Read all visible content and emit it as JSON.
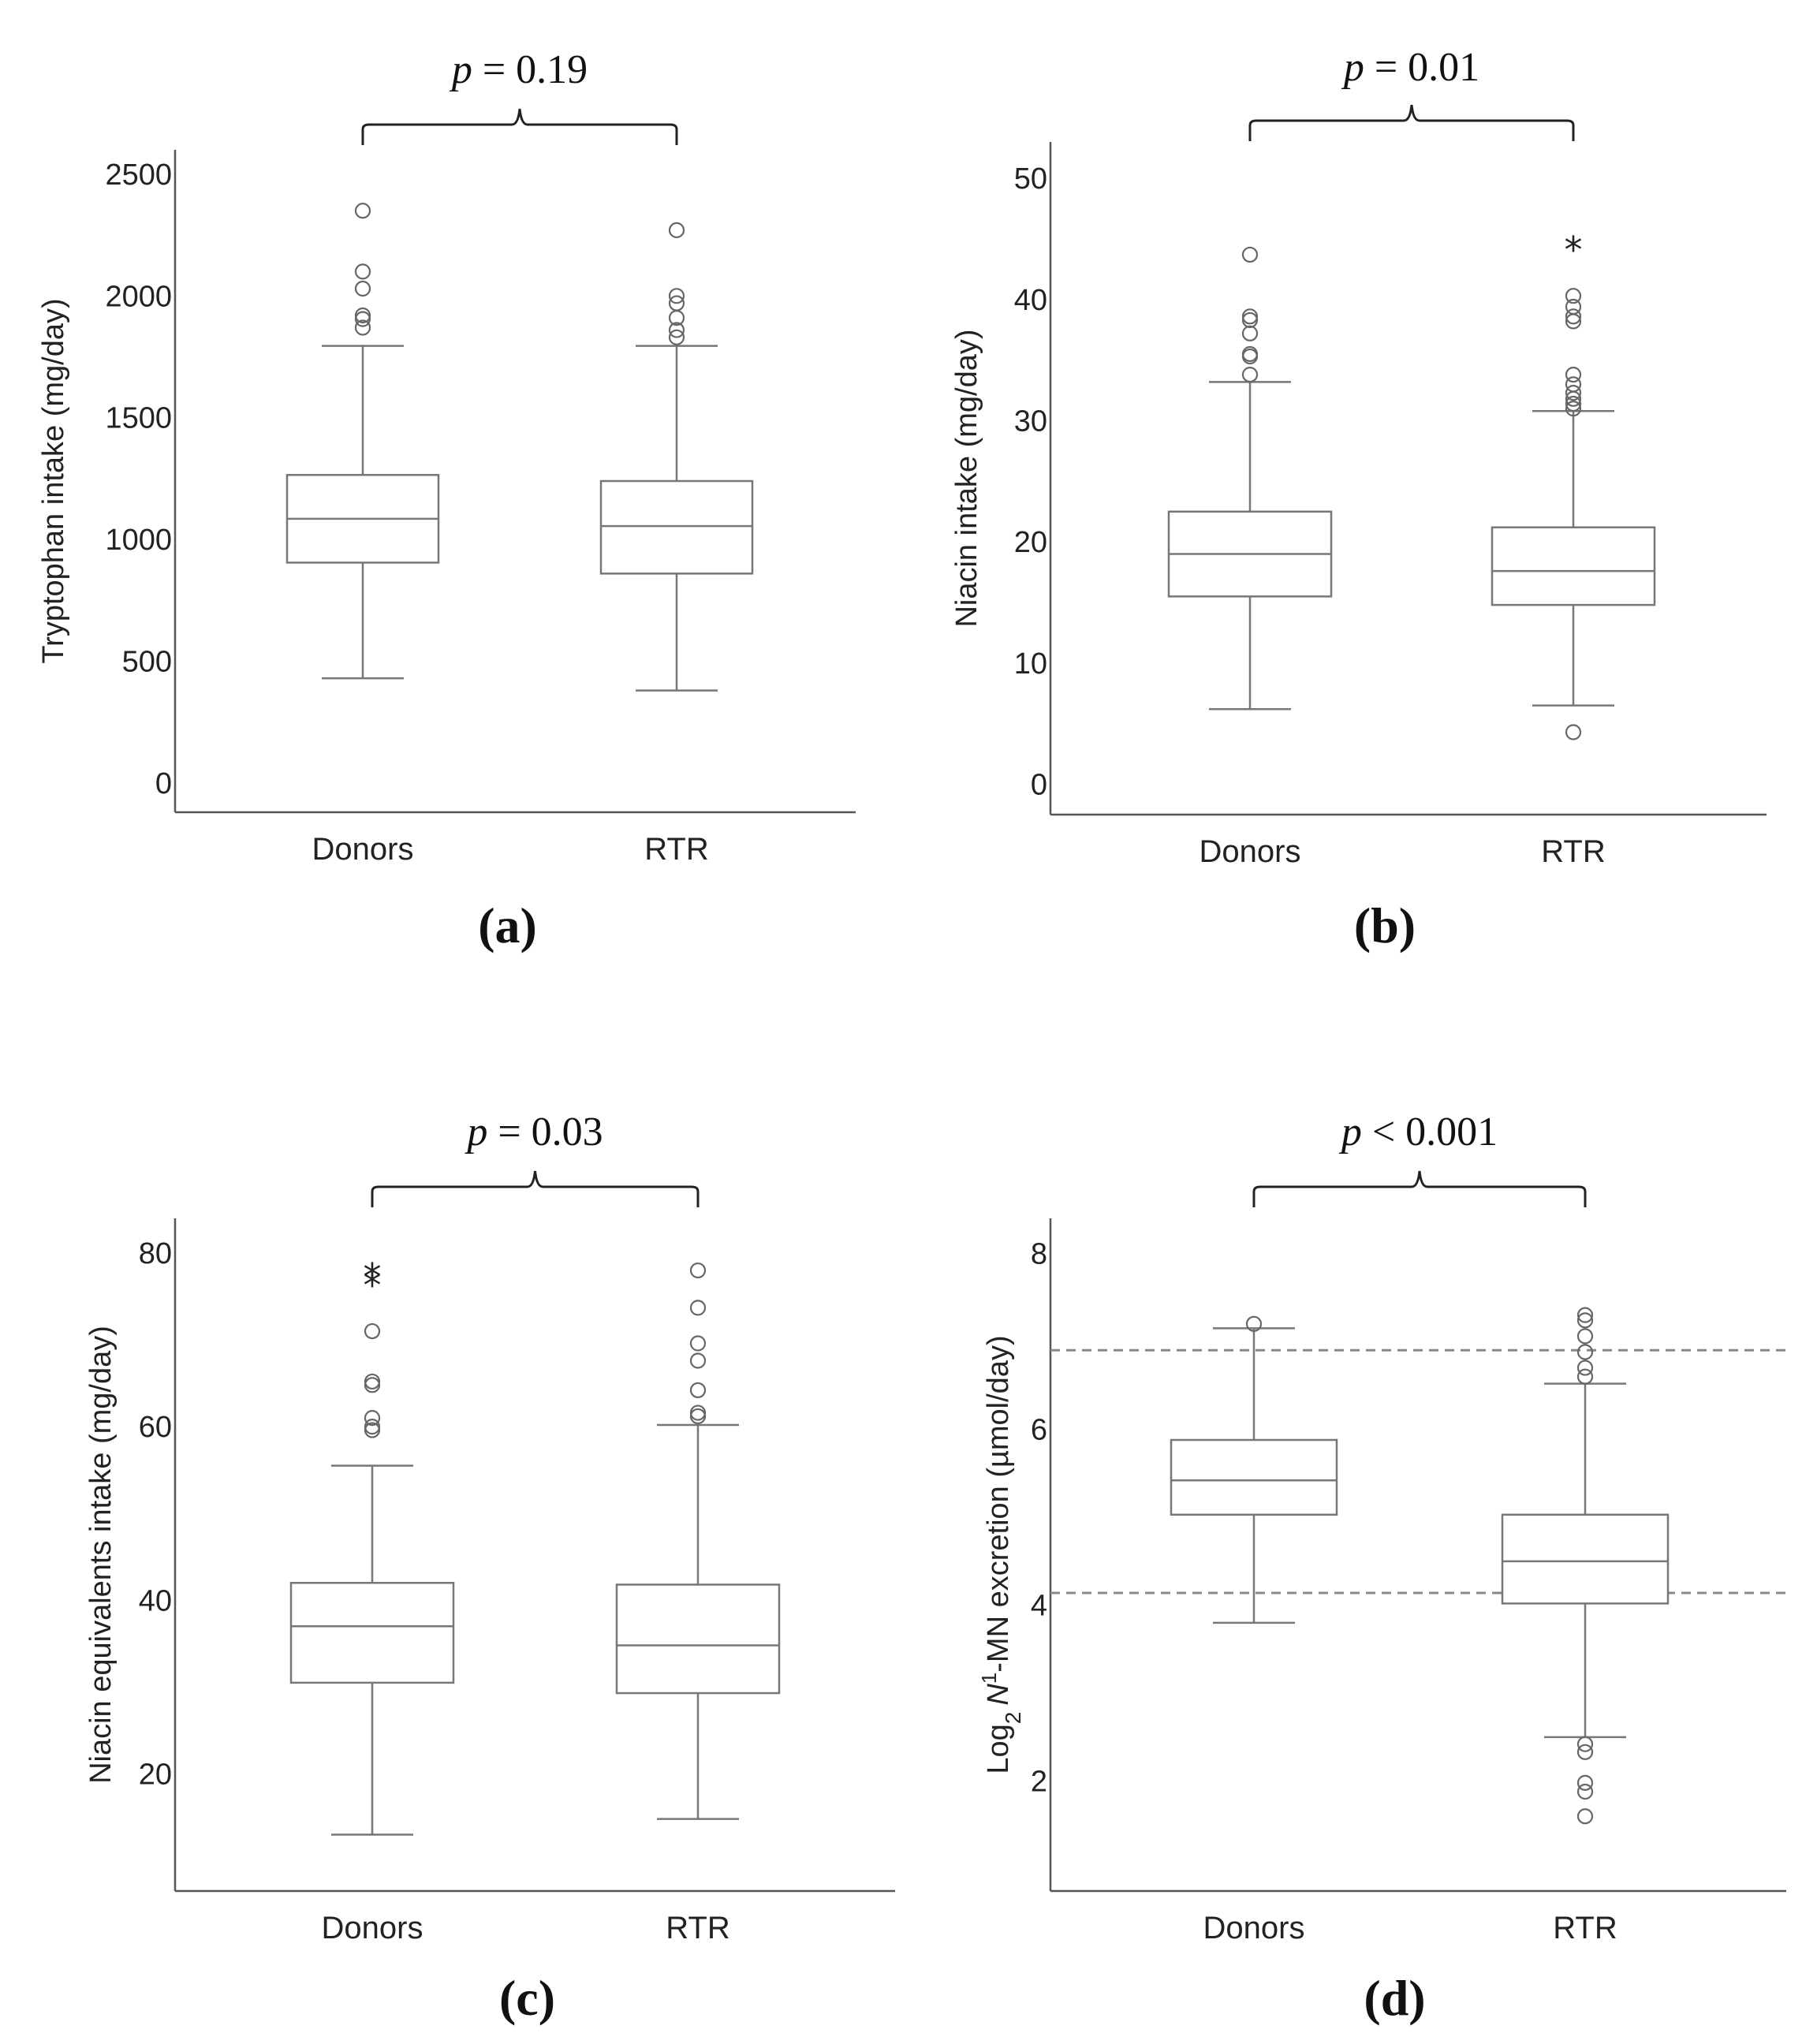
{
  "chart_data": [
    {
      "type": "box",
      "panel_label": "a",
      "ylabel": "Tryptophan intake (mg/day)",
      "p_prefix": "p",
      "p_text": " = 0.19",
      "ylim": [
        -120,
        2600
      ],
      "yticks": [
        0,
        500,
        1000,
        1500,
        2000,
        2500
      ],
      "ref_lines": [],
      "groups": [
        {
          "name": "Donors",
          "whisker_low": 430,
          "q1": 905,
          "median": 1085,
          "q3": 1265,
          "whisker_high": 1795,
          "outliers": [
            1870,
            1905,
            1920,
            2030,
            2100,
            2350
          ],
          "extremes": []
        },
        {
          "name": "RTR",
          "whisker_low": 380,
          "q1": 860,
          "median": 1055,
          "q3": 1240,
          "whisker_high": 1795,
          "outliers": [
            1830,
            1860,
            1910,
            1970,
            2000,
            2270
          ],
          "extremes": []
        }
      ]
    },
    {
      "type": "box",
      "panel_label": "b",
      "ylabel": "Niacin intake (mg/day)",
      "p_prefix": "p",
      "p_text": " = 0.01",
      "ylim": [
        -2.5,
        53
      ],
      "yticks": [
        0,
        10,
        20,
        30,
        40,
        50
      ],
      "ref_lines": [],
      "groups": [
        {
          "name": "Donors",
          "whisker_low": 6.2,
          "q1": 15.5,
          "median": 19.0,
          "q3": 22.5,
          "whisker_high": 33.2,
          "outliers": [
            33.8,
            35.3,
            35.5,
            37.2,
            38.3,
            38.6,
            43.7
          ],
          "extremes": []
        },
        {
          "name": "RTR",
          "whisker_low": 6.5,
          "q1": 14.8,
          "median": 17.6,
          "q3": 21.2,
          "whisker_high": 30.8,
          "outliers": [
            4.3,
            31.0,
            31.4,
            31.8,
            32.3,
            33.0,
            33.8,
            38.2,
            38.6,
            39.4,
            40.3
          ],
          "extremes": [
            44.6
          ]
        }
      ]
    },
    {
      "type": "box",
      "panel_label": "c",
      "ylabel": "Niacin equivalents intake (mg/day)",
      "p_prefix": "p",
      "p_text": " = 0.03",
      "ylim": [
        6.5,
        84
      ],
      "yticks": [
        20,
        40,
        60,
        80
      ],
      "ref_lines": [],
      "groups": [
        {
          "name": "Donors",
          "whisker_low": 13.0,
          "q1": 30.5,
          "median": 37.0,
          "q3": 42.0,
          "whisker_high": 55.5,
          "outliers": [
            59.6,
            60.0,
            61.0,
            64.8,
            65.2,
            71.0
          ],
          "extremes": [
            77.0,
            78.0
          ]
        },
        {
          "name": "RTR",
          "whisker_low": 14.8,
          "q1": 29.3,
          "median": 34.8,
          "q3": 41.8,
          "whisker_high": 60.2,
          "outliers": [
            61.2,
            61.6,
            64.2,
            67.6,
            69.6,
            73.7,
            78.0
          ],
          "extremes": []
        }
      ]
    },
    {
      "type": "box",
      "panel_label": "d",
      "ylabel_pre": "Log",
      "ylabel_sub": "2",
      "ylabel_italic": "N",
      "ylabel_sup": "1",
      "ylabel_post": "-MN excretion (µmol/day)",
      "p_prefix": "p",
      "p_text": " < 0.001",
      "ylim": [
        0.75,
        8.4
      ],
      "yticks": [
        2,
        4,
        6,
        8
      ],
      "ref_lines": [
        6.9,
        4.14
      ],
      "groups": [
        {
          "name": "Donors",
          "whisker_low": 3.8,
          "q1": 5.03,
          "median": 5.42,
          "q3": 5.88,
          "whisker_high": 7.15,
          "outliers": [
            7.2
          ],
          "extremes": []
        },
        {
          "name": "RTR",
          "whisker_low": 2.5,
          "q1": 4.02,
          "median": 4.5,
          "q3": 5.03,
          "whisker_high": 6.52,
          "outliers": [
            1.6,
            1.88,
            1.98,
            2.33,
            2.42,
            6.6,
            6.7,
            6.88,
            7.06,
            7.24,
            7.3
          ],
          "extremes": []
        }
      ]
    }
  ]
}
